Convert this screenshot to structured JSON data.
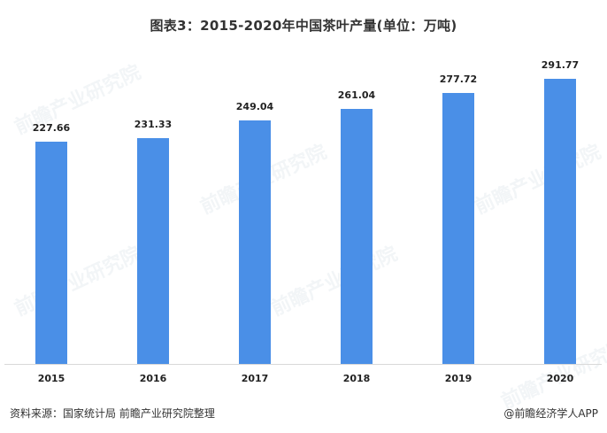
{
  "title": "图表3：2015-2020年中国茶叶产量(单位：万吨)",
  "footer": {
    "source": "资料来源：国家统计局 前瞻产业研究院整理",
    "credit": "@前瞻经济学人APP"
  },
  "watermark": "前瞻产业研究院",
  "colors": {
    "bar": "#4a8fe7",
    "axis": "#d9d9d9"
  },
  "chart_data": {
    "type": "bar",
    "title": "图表3：2015-2020年中国茶叶产量(单位：万吨)",
    "xlabel": "",
    "ylabel": "万吨",
    "categories": [
      "2015",
      "2016",
      "2017",
      "2018",
      "2019",
      "2020"
    ],
    "values": [
      227.66,
      231.33,
      249.04,
      261.04,
      277.72,
      291.77
    ],
    "value_labels": [
      "227.66",
      "231.33",
      "249.04",
      "261.04",
      "277.72",
      "291.77"
    ],
    "grid": false,
    "legend": null
  }
}
